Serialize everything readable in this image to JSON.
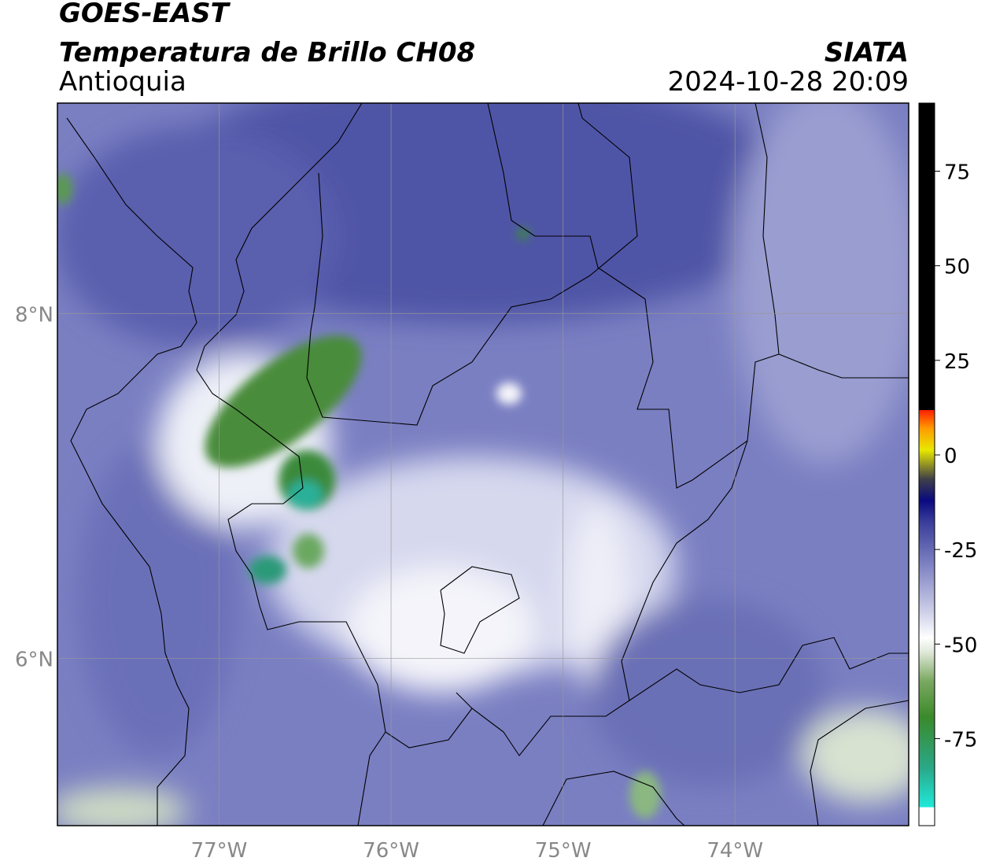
{
  "header": {
    "title": "GOES-EAST",
    "subtitle": "Temperatura de Brillo CH08",
    "region": "Antioquia",
    "source": "SIATA",
    "datetime": "2024-10-28 20:09"
  },
  "map": {
    "xlim": [
      -77.94,
      -72.99
    ],
    "ylim": [
      5.03,
      9.22
    ],
    "xticks": [
      {
        "value": -77,
        "label": "77°W"
      },
      {
        "value": -76,
        "label": "76°W"
      },
      {
        "value": -75,
        "label": "75°W"
      },
      {
        "value": -74,
        "label": "74°W"
      }
    ],
    "yticks": [
      {
        "value": 6,
        "label": "6°N"
      },
      {
        "value": 8,
        "label": "8°N"
      }
    ],
    "grid": true
  },
  "colorbar": {
    "lim": [
      -98,
      93
    ],
    "ticks": [
      -75,
      -50,
      -25,
      0,
      25,
      50,
      75
    ]
  }
}
